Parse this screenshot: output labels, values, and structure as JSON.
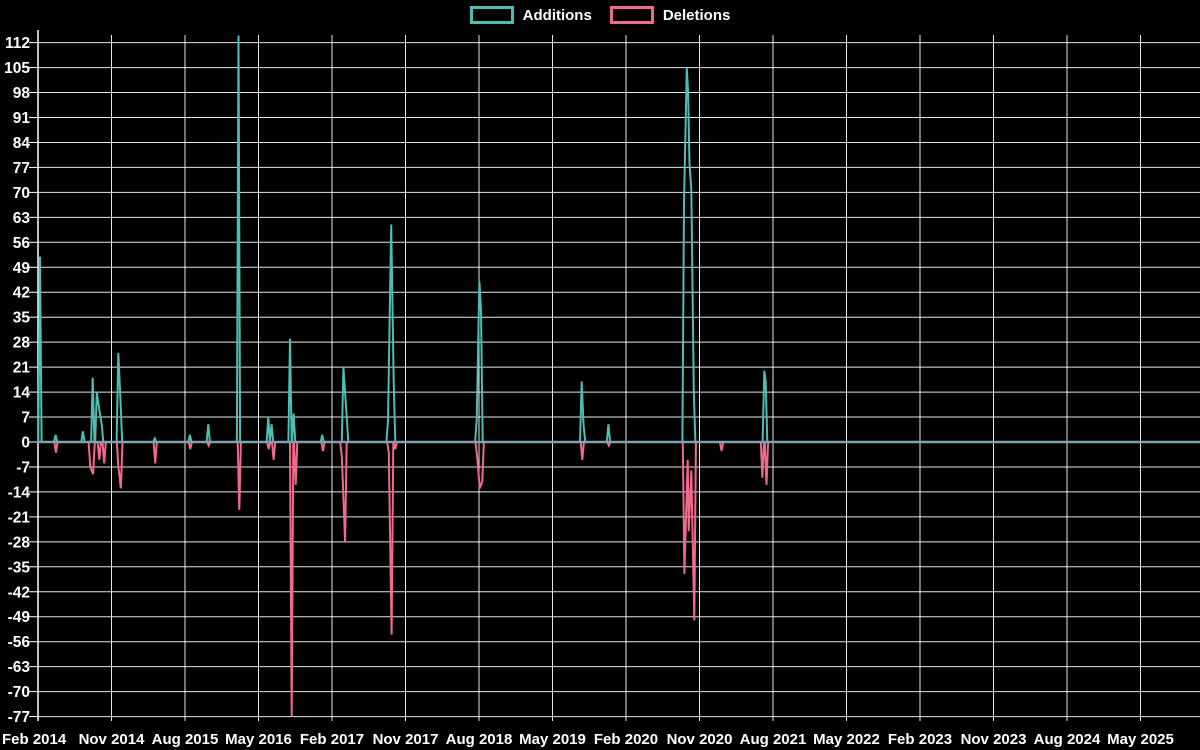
{
  "legend": {
    "items": [
      {
        "label": "Additions",
        "color": "#4DBDB5"
      },
      {
        "label": "Deletions",
        "color": "#F2698C"
      }
    ]
  },
  "chart_data": {
    "type": "line",
    "title": "",
    "legend_position": "top",
    "grid": true,
    "colors": {
      "background": "#000000",
      "grid": "#FFFFFF",
      "text": "#FFFFFF",
      "zero_line": "#7FA0B5",
      "additions": "#4DBDB5",
      "deletions": "#F2698C"
    },
    "y_axis": {
      "min": -77,
      "max": 112,
      "step": 7,
      "tick_labels": [
        "112",
        "105",
        "98",
        "91",
        "84",
        "77",
        "70",
        "63",
        "56",
        "49",
        "42",
        "35",
        "28",
        "21",
        "14",
        "7",
        "0",
        "-7",
        "-14",
        "-21",
        "-28",
        "-35",
        "-42",
        "-49",
        "-56",
        "-63",
        "-70",
        "-77"
      ]
    },
    "x_axis": {
      "labels": [
        "Feb 2014",
        "Nov 2014",
        "Aug 2015",
        "May 2016",
        "Feb 2017",
        "Nov 2017",
        "Aug 2018",
        "May 2019",
        "Feb 2020",
        "Nov 2020",
        "Aug 2021",
        "May 2022",
        "Feb 2023",
        "Nov 2023",
        "Aug 2024",
        "May 2025"
      ],
      "months_between_labels": 9,
      "x_unit": "months_since_Feb_2014",
      "x_range_months": [
        0,
        142.3
      ]
    },
    "series": [
      {
        "name": "Additions",
        "color": "#4DBDB5",
        "points": [
          [
            0.24,
            52
          ],
          [
            2.15,
            2
          ],
          [
            5.5,
            3
          ],
          [
            6.7,
            18
          ],
          [
            7.2,
            14
          ],
          [
            7.5,
            9
          ],
          [
            7.8,
            5
          ],
          [
            9.83,
            25
          ],
          [
            10.11,
            11
          ],
          [
            14.3,
            1
          ],
          [
            18.6,
            2
          ],
          [
            20.85,
            5
          ],
          [
            24.55,
            114
          ],
          [
            28.2,
            7
          ],
          [
            28.6,
            5
          ],
          [
            30.86,
            29
          ],
          [
            31.3,
            8
          ],
          [
            34.8,
            2
          ],
          [
            37.4,
            21
          ],
          [
            37.8,
            7
          ],
          [
            42.86,
            6
          ],
          [
            43.25,
            61
          ],
          [
            43.55,
            17
          ],
          [
            53.72,
            6
          ],
          [
            54.05,
            45
          ],
          [
            54.25,
            37
          ],
          [
            66.57,
            17
          ],
          [
            66.8,
            5
          ],
          [
            69.85,
            5
          ],
          [
            79.1,
            67
          ],
          [
            79.45,
            105
          ],
          [
            79.6,
            98
          ],
          [
            79.78,
            78
          ],
          [
            80.0,
            71
          ],
          [
            80.3,
            14
          ],
          [
            88.93,
            20
          ],
          [
            89.1,
            17
          ]
        ]
      },
      {
        "name": "Deletions",
        "color": "#F2698C",
        "points": [
          [
            2.2,
            -3
          ],
          [
            6.4,
            -7
          ],
          [
            6.75,
            -9
          ],
          [
            7.5,
            -5
          ],
          [
            8.1,
            -6
          ],
          [
            9.85,
            -7
          ],
          [
            10.15,
            -13
          ],
          [
            14.35,
            -6
          ],
          [
            18.65,
            -2
          ],
          [
            20.9,
            -1
          ],
          [
            24.65,
            -19
          ],
          [
            28.25,
            -2
          ],
          [
            28.85,
            -5
          ],
          [
            31.06,
            -77
          ],
          [
            31.55,
            -12
          ],
          [
            34.9,
            -2.5
          ],
          [
            37.2,
            -4
          ],
          [
            37.6,
            -28
          ],
          [
            42.95,
            -3
          ],
          [
            43.3,
            -54
          ],
          [
            43.75,
            -2
          ],
          [
            53.77,
            -4
          ],
          [
            54.1,
            -13
          ],
          [
            54.4,
            -11
          ],
          [
            66.65,
            -5
          ],
          [
            69.9,
            -1
          ],
          [
            79.15,
            -37
          ],
          [
            79.55,
            -5
          ],
          [
            79.68,
            -25
          ],
          [
            80.0,
            -8
          ],
          [
            80.36,
            -50
          ],
          [
            83.7,
            -2.5
          ],
          [
            88.7,
            -10
          ],
          [
            89.2,
            -12
          ]
        ]
      }
    ]
  }
}
